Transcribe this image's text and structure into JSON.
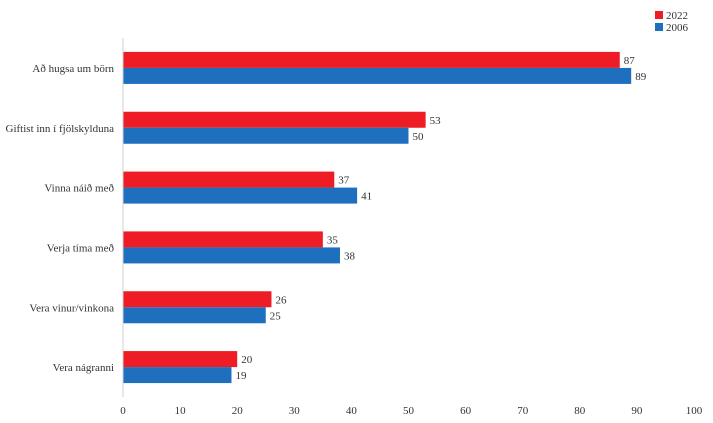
{
  "chart_data": {
    "type": "bar",
    "orientation": "horizontal",
    "categories": [
      "Að hugsa um börn",
      "Giftist inn í fjölskylduna",
      "Vinna náið með",
      "Verja tíma með",
      "Vera vinur/vinkona",
      "Vera nágranni"
    ],
    "series": [
      {
        "name": "2022",
        "color": "#ee1c25",
        "values": [
          87,
          53,
          37,
          35,
          26,
          20
        ]
      },
      {
        "name": "2006",
        "color": "#1f6fbf",
        "values": [
          89,
          50,
          41,
          38,
          25,
          19
        ]
      }
    ],
    "xlim": [
      0,
      100
    ],
    "xticks": [
      "0",
      "10",
      "20",
      "30",
      "40",
      "50",
      "60",
      "70",
      "80",
      "90",
      "100"
    ],
    "legend_position": "top-right",
    "data_labels": true,
    "grid": false
  }
}
